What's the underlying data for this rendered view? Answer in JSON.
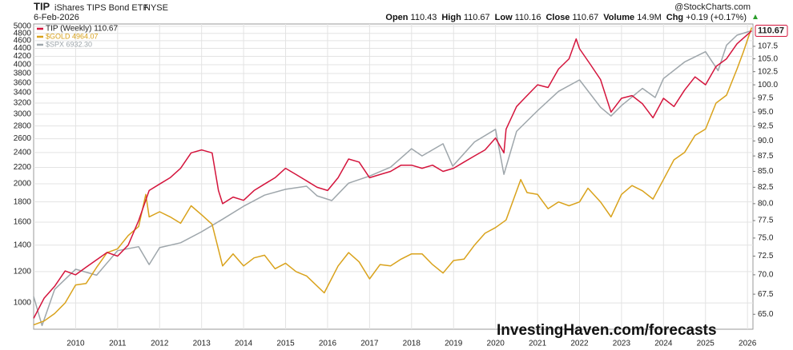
{
  "chart_data": {
    "type": "line",
    "header": {
      "symbol": "TIP",
      "name": "iShares TIPS Bond ETF",
      "exchange": "NYSE",
      "date": "6-Feb-2026",
      "brand": "@StockCharts.com",
      "quote": [
        {
          "label": "Open",
          "value": "110.43"
        },
        {
          "label": "High",
          "value": "110.67"
        },
        {
          "label": "Low",
          "value": "110.16"
        },
        {
          "label": "Close",
          "value": "110.67"
        },
        {
          "label": "Volume",
          "value": "14.9M"
        },
        {
          "label": "Chg",
          "value": "+0.19 (+0.17%)"
        }
      ]
    },
    "watermark": "InvestingHaven.com/forecasts",
    "xlim": [
      2009.0,
      2026.13
    ],
    "xticks": [
      2010,
      2011,
      2012,
      2013,
      2014,
      2015,
      2016,
      2017,
      2018,
      2019,
      2020,
      2021,
      2022,
      2023,
      2024,
      2025,
      2026
    ],
    "ylim": [
      858,
      5070
    ],
    "ylog": true,
    "yticks": [
      1000,
      1200,
      1400,
      1600,
      1800,
      2000,
      2200,
      2400,
      2600,
      2800,
      3000,
      3200,
      3400,
      3600,
      3800,
      4000,
      4200,
      4400,
      4600,
      4800,
      5000
    ],
    "y2lim": [
      63.2,
      112.1
    ],
    "y2log": true,
    "y2ticks": [
      {
        "value": 65,
        "label": "65.0"
      },
      67.5,
      {
        "value": 70,
        "label": "70.0"
      },
      72.5,
      {
        "value": 75,
        "label": "75.0"
      },
      77.5,
      {
        "value": 80,
        "label": "80.0"
      },
      82.5,
      {
        "value": 85,
        "label": "85.0"
      },
      87.5,
      {
        "value": 90,
        "label": "90.0"
      },
      92.5,
      {
        "value": 95,
        "label": "95.0"
      },
      97.5,
      {
        "value": 100,
        "label": "100.0"
      },
      102.5,
      {
        "value": 105,
        "label": "105.0"
      },
      107.5
    ],
    "y3lim": [
      700,
      7300
    ],
    "y3log": true,
    "grid": true,
    "series": [
      {
        "name": "TIP (Weekly) 110.67",
        "color": "#d4143c",
        "axis": "y2",
        "x": [
          2009.0,
          2009.25,
          2009.5,
          2009.75,
          2010.0,
          2010.25,
          2010.5,
          2010.75,
          2011.0,
          2011.25,
          2011.5,
          2011.75,
          2012.0,
          2012.25,
          2012.5,
          2012.75,
          2013.0,
          2013.25,
          2013.4,
          2013.5,
          2013.75,
          2014.0,
          2014.25,
          2014.5,
          2014.75,
          2015.0,
          2015.25,
          2015.5,
          2015.75,
          2016.0,
          2016.25,
          2016.5,
          2016.75,
          2017.0,
          2017.25,
          2017.5,
          2017.75,
          2018.0,
          2018.25,
          2018.5,
          2018.75,
          2019.0,
          2019.25,
          2019.5,
          2019.75,
          2020.0,
          2020.2,
          2020.25,
          2020.5,
          2020.75,
          2021.0,
          2021.25,
          2021.5,
          2021.75,
          2021.92,
          2022.0,
          2022.25,
          2022.5,
          2022.75,
          2023.0,
          2023.25,
          2023.5,
          2023.75,
          2024.0,
          2024.25,
          2024.5,
          2024.75,
          2025.0,
          2025.25,
          2025.5,
          2025.75,
          2026.1
        ],
        "values": [
          64.5,
          67,
          68.5,
          70.5,
          70,
          71,
          72,
          73,
          72.5,
          74,
          77.5,
          82,
          83,
          84,
          85.5,
          88,
          88.5,
          88,
          82,
          80,
          81,
          80.5,
          82,
          83,
          84,
          85.5,
          84.5,
          83.5,
          82.5,
          82,
          84,
          87,
          86.5,
          84,
          84.5,
          85,
          86,
          86,
          85.5,
          86,
          85,
          85.5,
          86.5,
          87.5,
          88.5,
          90.5,
          88,
          92,
          96,
          98,
          100,
          99.5,
          103,
          105,
          109,
          107,
          104,
          101,
          95,
          97.5,
          98,
          96.5,
          94,
          97.5,
          96,
          99,
          101.5,
          100,
          103.5,
          105,
          108,
          110.67
        ]
      },
      {
        "name": "$GOLD 4964.07",
        "color": "#d9a21b",
        "x": [
          2009.0,
          2009.25,
          2009.5,
          2009.75,
          2010.0,
          2010.25,
          2010.5,
          2010.75,
          2011.0,
          2011.25,
          2011.5,
          2011.67,
          2011.75,
          2012.0,
          2012.25,
          2012.5,
          2012.75,
          2013.0,
          2013.25,
          2013.5,
          2013.75,
          2014.0,
          2014.25,
          2014.5,
          2014.75,
          2015.0,
          2015.25,
          2015.5,
          2015.92,
          2016.25,
          2016.5,
          2016.75,
          2017.0,
          2017.25,
          2017.5,
          2017.75,
          2018.0,
          2018.25,
          2018.5,
          2018.75,
          2019.0,
          2019.25,
          2019.5,
          2019.75,
          2020.0,
          2020.25,
          2020.6,
          2020.75,
          2021.0,
          2021.25,
          2021.5,
          2021.75,
          2022.0,
          2022.2,
          2022.5,
          2022.75,
          2023.0,
          2023.25,
          2023.5,
          2023.75,
          2024.0,
          2024.25,
          2024.5,
          2024.75,
          2025.0,
          2025.25,
          2025.5,
          2025.75,
          2025.9,
          2026.1
        ],
        "values": [
          880,
          900,
          940,
          1000,
          1110,
          1120,
          1230,
          1340,
          1370,
          1480,
          1560,
          1880,
          1650,
          1700,
          1650,
          1590,
          1760,
          1670,
          1580,
          1240,
          1330,
          1240,
          1300,
          1320,
          1220,
          1260,
          1200,
          1170,
          1060,
          1240,
          1340,
          1270,
          1150,
          1250,
          1240,
          1290,
          1330,
          1330,
          1250,
          1190,
          1280,
          1290,
          1400,
          1500,
          1550,
          1620,
          2050,
          1900,
          1880,
          1730,
          1800,
          1760,
          1800,
          1950,
          1800,
          1650,
          1880,
          1980,
          1920,
          1830,
          2050,
          2300,
          2400,
          2650,
          2750,
          3200,
          3350,
          3900,
          4300,
          4964.07
        ]
      },
      {
        "name": "$SPX 6932.30",
        "color": "#9ea6ab",
        "axis": "y3",
        "x": [
          2009.0,
          2009.2,
          2009.5,
          2010.0,
          2010.5,
          2011.0,
          2011.5,
          2011.75,
          2012.0,
          2012.5,
          2013.0,
          2013.5,
          2014.0,
          2014.5,
          2015.0,
          2015.5,
          2015.75,
          2016.1,
          2016.5,
          2017.0,
          2017.5,
          2018.0,
          2018.25,
          2018.75,
          2018.98,
          2019.5,
          2020.0,
          2020.2,
          2020.5,
          2021.0,
          2021.5,
          2022.0,
          2022.5,
          2022.75,
          2023.0,
          2023.5,
          2023.8,
          2024.0,
          2024.5,
          2025.0,
          2025.3,
          2025.5,
          2025.75,
          2026.1
        ],
        "values": [
          900,
          720,
          950,
          1110,
          1060,
          1280,
          1320,
          1150,
          1310,
          1360,
          1480,
          1630,
          1800,
          1960,
          2050,
          2100,
          1950,
          1880,
          2150,
          2270,
          2430,
          2800,
          2650,
          2910,
          2450,
          2950,
          3250,
          2300,
          3200,
          3750,
          4350,
          4750,
          3850,
          3600,
          3900,
          4450,
          4150,
          4800,
          5450,
          5900,
          5100,
          6200,
          6700,
          6932.3
        ]
      }
    ]
  }
}
